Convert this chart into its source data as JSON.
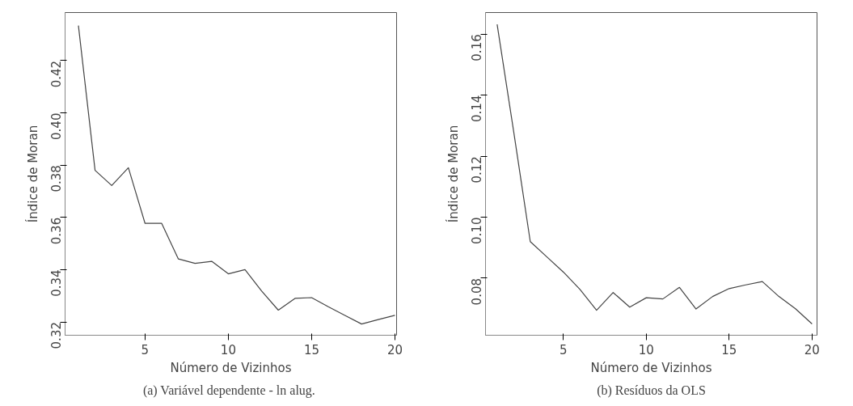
{
  "chart_data": [
    {
      "type": "line",
      "xlabel": "Número de Vizinhos",
      "ylabel": "Índice de Moran",
      "annotations": [
        "(a) Variável dependente - ln  alug."
      ],
      "x": [
        1,
        2,
        3,
        4,
        5,
        6,
        7,
        8,
        9,
        10,
        11,
        12,
        13,
        14,
        15,
        16,
        17,
        18,
        19,
        20
      ],
      "series": [
        {
          "color": "#444444",
          "values": [
            0.4334,
            0.378,
            0.3722,
            0.379,
            0.3577,
            0.3577,
            0.3441,
            0.3424,
            0.3432,
            0.3384,
            0.34,
            0.3318,
            0.3245,
            0.329,
            0.3293,
            0.3258,
            0.3225,
            0.3192,
            0.3209,
            0.3225
          ]
        }
      ],
      "xlim": [
        0.2,
        20.1
      ],
      "ylim": [
        0.3149,
        0.4384
      ],
      "xticks": [
        5,
        10,
        15,
        20
      ],
      "yticks": [
        {
          "value": 0.32,
          "label": "0.32"
        },
        {
          "value": 0.34,
          "label": "0.34"
        },
        {
          "value": 0.36,
          "label": "0.36"
        },
        {
          "value": 0.38,
          "label": "0.38"
        },
        {
          "value": 0.4,
          "label": "0.40"
        },
        {
          "value": 0.42,
          "label": "0.42"
        }
      ],
      "grid": false,
      "line_style": "solid"
    },
    {
      "type": "line",
      "xlabel": "Número de Vizinhos",
      "ylabel": "Índice de Moran",
      "annotations": [
        "(b) Resíduos da OLS"
      ],
      "x": [
        1,
        2,
        3,
        4,
        5,
        6,
        7,
        8,
        9,
        10,
        11,
        12,
        13,
        14,
        15,
        16,
        17,
        18,
        19,
        20
      ],
      "series": [
        {
          "color": "#444444",
          "values": [
            0.1632,
            0.128,
            0.092,
            0.087,
            0.082,
            0.0763,
            0.0695,
            0.0753,
            0.0705,
            0.0736,
            0.0732,
            0.077,
            0.0699,
            0.074,
            0.0766,
            0.0778,
            0.0789,
            0.074,
            0.07,
            0.065
          ]
        }
      ],
      "xlim": [
        0.3,
        20.3
      ],
      "ylim": [
        0.0613,
        0.1671
      ],
      "xticks": [
        5,
        10,
        15,
        20
      ],
      "yticks": [
        {
          "value": 0.08,
          "label": "0.08"
        },
        {
          "value": 0.1,
          "label": "0.10"
        },
        {
          "value": 0.12,
          "label": "0.12"
        },
        {
          "value": 0.14,
          "label": "0.14"
        },
        {
          "value": 0.16,
          "label": "0.16"
        }
      ],
      "grid": false,
      "line_style": "solid"
    }
  ]
}
